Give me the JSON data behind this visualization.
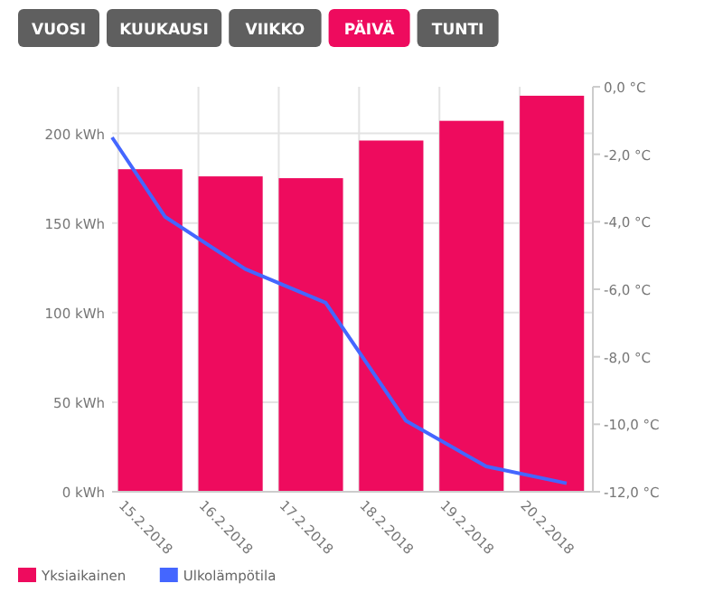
{
  "chart_data": {
    "type": "bar",
    "annotations": [
      "VUOSI",
      "KUUKAUSI",
      "VIIKKO",
      "PÄIVÄ",
      "TUNTI"
    ],
    "x": [
      "2018-02-15T09:36",
      "2018-02-16T09:36",
      "2018-02-17T09:36",
      "2018-02-18T09:36",
      "2018-02-19T09:36",
      "2018-02-20T09:36"
    ],
    "series": [
      {
        "name": "Yksiaikainen",
        "color": "#ee0b5e",
        "values": [
          180,
          176,
          175,
          196,
          207,
          221
        ]
      },
      {
        "name": "Ulkolämpötila",
        "type": "line",
        "axis": "y2",
        "color": "#4466ff",
        "x": [
          "2018-02-14T22:12",
          "2018-02-15T14:00",
          "2018-02-16T14:00",
          "2018-02-17T14:00",
          "2018-02-18T14:00",
          "2018-02-19T14:00",
          "2018-02-20T14:00"
        ],
        "values": [
          -1.5,
          -3.85,
          -5.4,
          -6.4,
          -9.9,
          -11.25,
          -11.75
        ]
      }
    ],
    "xlim": [
      "2018-02-14T22:12",
      "2018-02-20T21:50"
    ],
    "xticks": [
      {
        "value": "2018-02-15",
        "label": "15.2.2018"
      },
      {
        "value": "2018-02-16",
        "label": "16.2.2018"
      },
      {
        "value": "2018-02-17",
        "label": "17.2.2018"
      },
      {
        "value": "2018-02-18",
        "label": "18.2.2018"
      },
      {
        "value": "2018-02-19",
        "label": "19.2.2018"
      },
      {
        "value": "2018-02-20",
        "label": "20.2.2018"
      }
    ],
    "ylim": [
      0,
      226
    ],
    "yticks": [
      {
        "value": 0,
        "label": "0 kWh"
      },
      {
        "value": 50,
        "label": "50 kWh"
      },
      {
        "value": 100,
        "label": "100 kWh"
      },
      {
        "value": 150,
        "label": "150 kWh"
      },
      {
        "value": 200,
        "label": "200 kWh"
      }
    ],
    "y2lim": [
      -12,
      0
    ],
    "y2ticks": [
      {
        "value": -12,
        "label": "-12,0 °C"
      },
      {
        "value": -10,
        "label": "-10,0 °C"
      },
      {
        "value": -8,
        "label": "-8,0 °C"
      },
      {
        "value": -6,
        "label": "-6,0 °C"
      },
      {
        "value": -4,
        "label": "-4,0 °C"
      },
      {
        "value": -2,
        "label": "-2,0 °C"
      },
      {
        "value": 0,
        "label": "0,0 °C"
      }
    ],
    "grid": true,
    "legend": "bottom left",
    "marker": "none",
    "line_style": "solid"
  }
}
